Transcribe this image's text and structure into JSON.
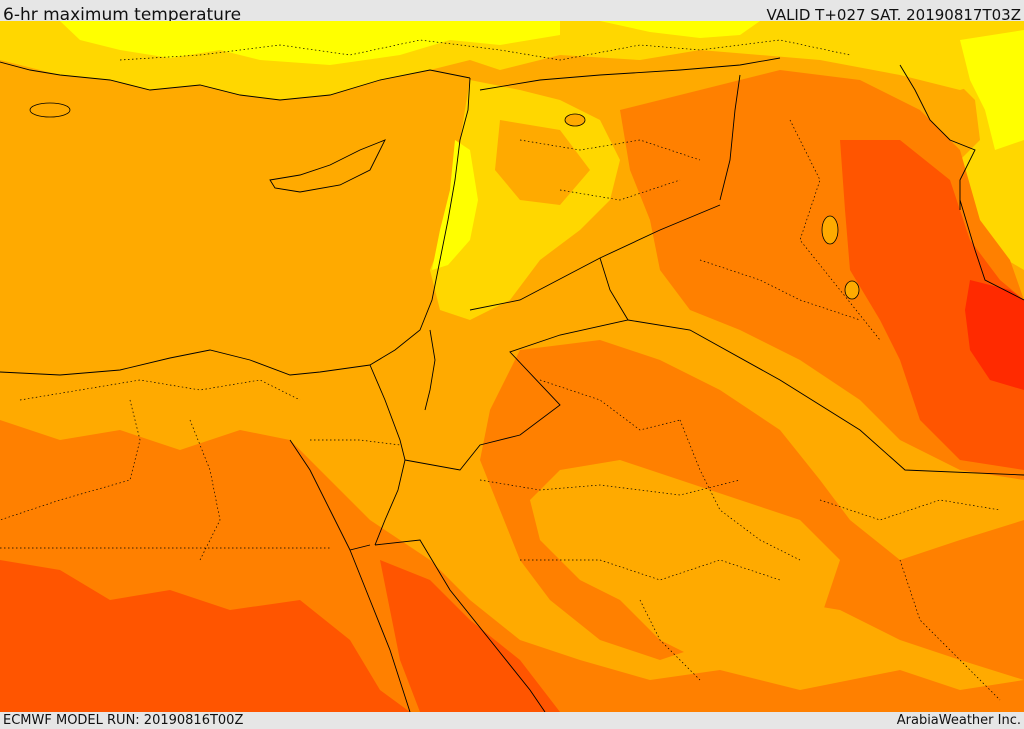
{
  "header": {
    "title": "6-hr maximum temperature",
    "valid": "VALID T+027 SAT. 20190817T03Z"
  },
  "footer": {
    "model_run": "ECMWF MODEL RUN: 20190816T00Z",
    "credit": "ArabiaWeather Inc."
  },
  "colors": {
    "yellow": "#ffff00",
    "gold": "#ffd700",
    "orange_light": "#ffaa00",
    "orange": "#ff8000",
    "red_orange": "#ff5500",
    "red": "#ff2a00",
    "border": "#000000"
  }
}
